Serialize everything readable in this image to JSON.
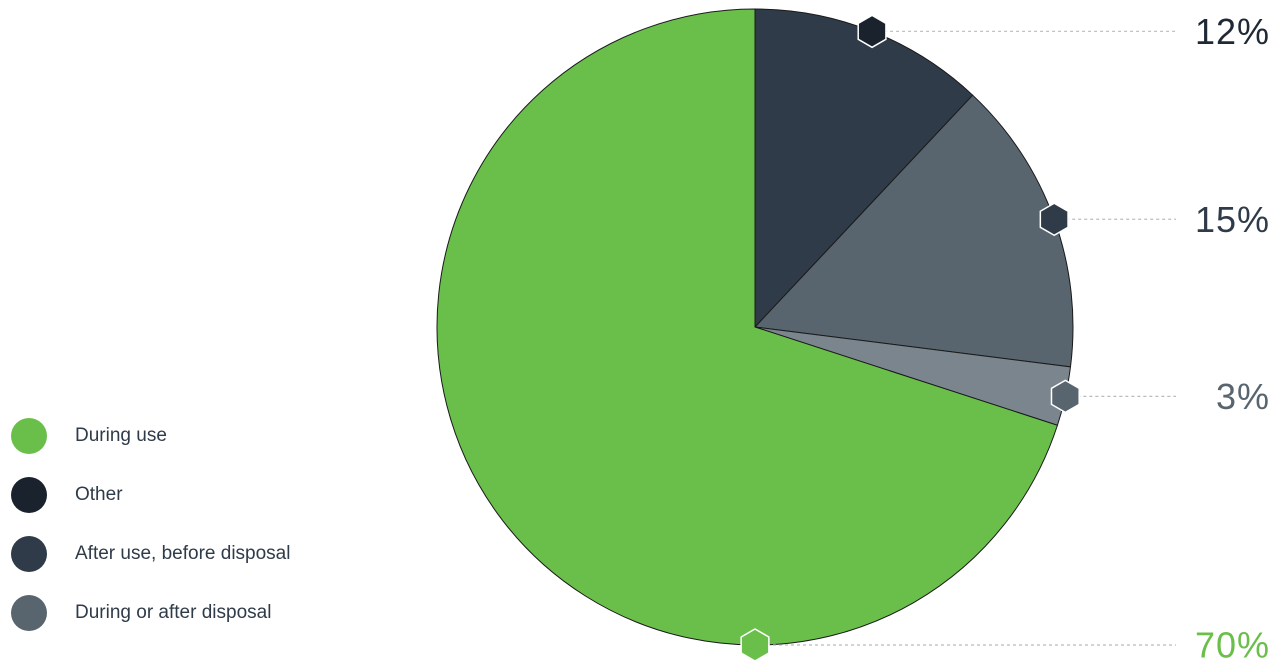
{
  "chart_data": {
    "type": "pie",
    "slices": [
      {
        "name": "Other",
        "value": 12,
        "label": "12%",
        "color": "#2f3b48",
        "marker_color": "#1a222d",
        "label_color": "#1f2935"
      },
      {
        "name": "After use, before disposal",
        "value": 15,
        "label": "15%",
        "color": "#59656e",
        "marker_color": "#2f3b48",
        "label_color": "#2f3b48"
      },
      {
        "name": "During or after disposal",
        "value": 3,
        "label": "3%",
        "color": "#7a858d",
        "marker_color": "#59656e",
        "label_color": "#59656e"
      },
      {
        "name": "During use",
        "value": 70,
        "label": "70%",
        "color": "#6abf4b",
        "marker_color": "#6abf4b",
        "label_color": "#6abf4b"
      }
    ],
    "legend": {
      "placement": "bottom-left",
      "items": [
        {
          "label": "During use",
          "color": "#6abf4b"
        },
        {
          "label": "Other",
          "color": "#1a222d"
        },
        {
          "label": "After use, before disposal",
          "color": "#2f3b48"
        },
        {
          "label": "During or after disposal",
          "color": "#59656e"
        }
      ]
    }
  }
}
